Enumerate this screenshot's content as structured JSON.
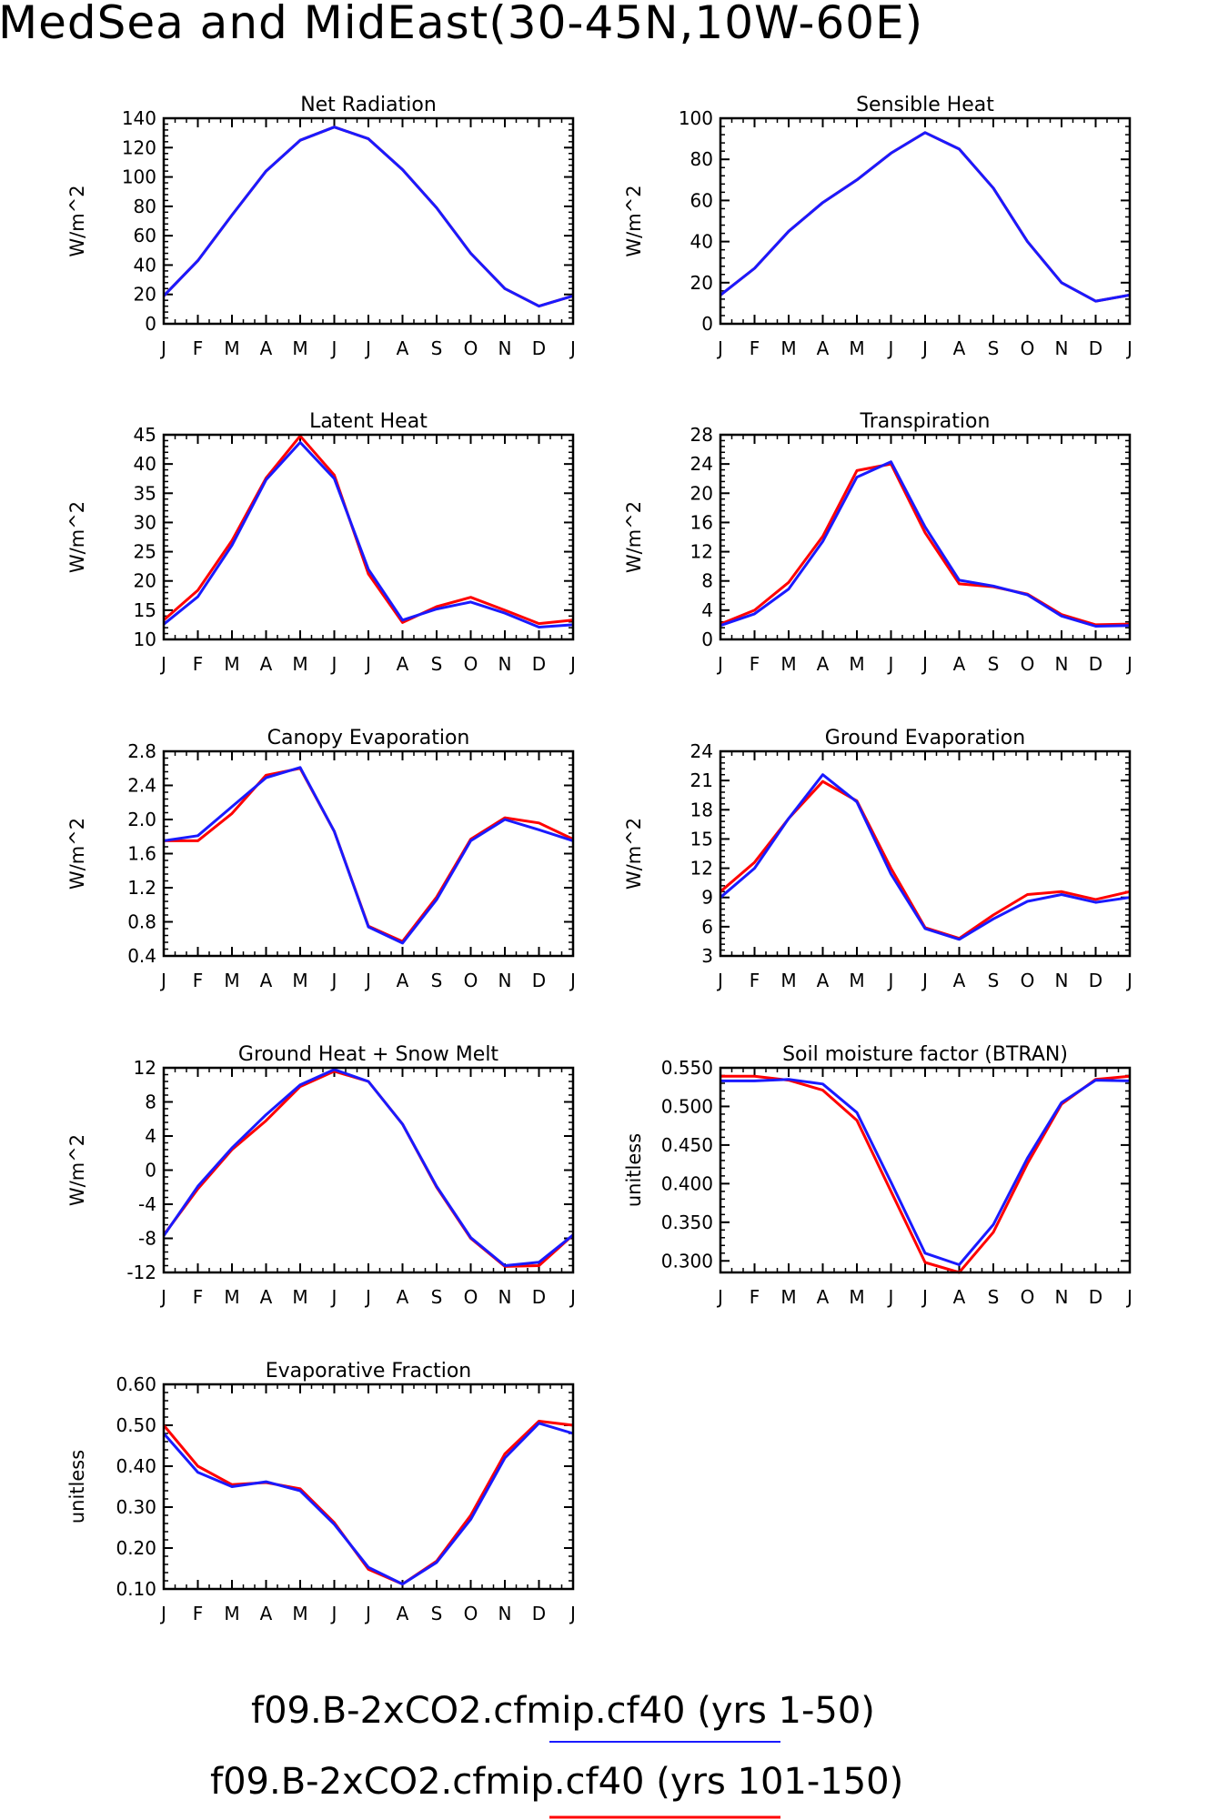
{
  "title": "MedSea and MidEast(30-45N,10W-60E)",
  "colors": {
    "series1": "#1a1aff",
    "series2": "#ff0000",
    "axis": "#000000"
  },
  "legend": [
    {
      "name": "f09.B-2xCO2.cfmip.cf40 (yrs 1-50)",
      "color": "#1a1aff"
    },
    {
      "name": "f09.B-2xCO2.cfmip.cf40 (yrs 101-150)",
      "color": "#ff0000"
    }
  ],
  "chart_data": [
    {
      "type": "line",
      "title": "Net Radiation",
      "ylabel": "W/m^2",
      "xlabel": "",
      "categories": [
        "J",
        "F",
        "M",
        "A",
        "M",
        "J",
        "J",
        "A",
        "S",
        "O",
        "N",
        "D",
        "J"
      ],
      "ylim": [
        0,
        140
      ],
      "yticks": [
        0,
        20,
        40,
        60,
        80,
        100,
        120,
        140
      ],
      "yfmt": 0,
      "series": [
        {
          "name": "f09.B-2xCO2.cfmip.cf40 (yrs 1-50)",
          "values": [
            19,
            43,
            74,
            104,
            125,
            134,
            126,
            105,
            79,
            48,
            24,
            12,
            19
          ]
        },
        {
          "name": "f09.B-2xCO2.cfmip.cf40 (yrs 101-150)",
          "values": [
            19,
            43,
            74,
            104,
            125,
            134,
            126,
            105,
            79,
            48,
            24,
            12,
            19
          ]
        }
      ]
    },
    {
      "type": "line",
      "title": "Sensible Heat",
      "ylabel": "W/m^2",
      "xlabel": "",
      "categories": [
        "J",
        "F",
        "M",
        "A",
        "M",
        "J",
        "J",
        "A",
        "S",
        "O",
        "N",
        "D",
        "J"
      ],
      "ylim": [
        0,
        100
      ],
      "yticks": [
        0,
        20,
        40,
        60,
        80,
        100
      ],
      "yfmt": 0,
      "series": [
        {
          "name": "f09.B-2xCO2.cfmip.cf40 (yrs 1-50)",
          "values": [
            14,
            27,
            45,
            59,
            70,
            83,
            93,
            85,
            66,
            40,
            20,
            11,
            14
          ]
        },
        {
          "name": "f09.B-2xCO2.cfmip.cf40 (yrs 101-150)",
          "values": [
            14,
            27,
            45,
            59,
            70,
            83,
            93,
            85,
            66,
            40,
            20,
            11,
            14
          ]
        }
      ]
    },
    {
      "type": "line",
      "title": "Latent Heat",
      "ylabel": "W/m^2",
      "xlabel": "",
      "categories": [
        "J",
        "F",
        "M",
        "A",
        "M",
        "J",
        "J",
        "A",
        "S",
        "O",
        "N",
        "D",
        "J"
      ],
      "ylim": [
        10,
        45
      ],
      "yticks": [
        10,
        15,
        20,
        25,
        30,
        35,
        40,
        45
      ],
      "yfmt": 0,
      "series": [
        {
          "name": "f09.B-2xCO2.cfmip.cf40 (yrs 1-50)",
          "values": [
            12.6,
            17.3,
            26.1,
            37.3,
            43.7,
            37.5,
            22.0,
            13.3,
            15.2,
            16.4,
            14.5,
            12.1,
            12.5
          ]
        },
        {
          "name": "f09.B-2xCO2.cfmip.cf40 (yrs 101-150)",
          "values": [
            13.3,
            18.4,
            26.9,
            37.6,
            44.8,
            38.1,
            21.2,
            12.9,
            15.6,
            17.2,
            15.0,
            12.7,
            13.3
          ]
        }
      ]
    },
    {
      "type": "line",
      "title": "Transpiration",
      "ylabel": "W/m^2",
      "xlabel": "",
      "categories": [
        "J",
        "F",
        "M",
        "A",
        "M",
        "J",
        "J",
        "A",
        "S",
        "O",
        "N",
        "D",
        "J"
      ],
      "ylim": [
        0,
        28
      ],
      "yticks": [
        0,
        4,
        8,
        12,
        16,
        20,
        24,
        28
      ],
      "yfmt": 0,
      "series": [
        {
          "name": "f09.B-2xCO2.cfmip.cf40 (yrs 1-50)",
          "values": [
            1.9,
            3.5,
            6.9,
            13.4,
            22.2,
            24.3,
            15.4,
            8.1,
            7.3,
            6.1,
            3.2,
            1.8,
            1.9
          ]
        },
        {
          "name": "f09.B-2xCO2.cfmip.cf40 (yrs 101-150)",
          "values": [
            2.1,
            4.0,
            7.8,
            14.1,
            23.1,
            24.0,
            14.6,
            7.6,
            7.2,
            6.2,
            3.4,
            2.0,
            2.1
          ]
        }
      ]
    },
    {
      "type": "line",
      "title": "Canopy Evaporation",
      "ylabel": "W/m^2",
      "xlabel": "",
      "categories": [
        "J",
        "F",
        "M",
        "A",
        "M",
        "J",
        "J",
        "A",
        "S",
        "O",
        "N",
        "D",
        "J"
      ],
      "ylim": [
        0.4,
        2.8
      ],
      "yticks": [
        0.4,
        0.8,
        1.2,
        1.6,
        2.0,
        2.4,
        2.8
      ],
      "yfmt": 1,
      "series": [
        {
          "name": "f09.B-2xCO2.cfmip.cf40 (yrs 1-50)",
          "values": [
            1.75,
            1.81,
            2.15,
            2.49,
            2.61,
            1.86,
            0.74,
            0.55,
            1.06,
            1.75,
            2.0,
            1.88,
            1.75
          ]
        },
        {
          "name": "f09.B-2xCO2.cfmip.cf40 (yrs 101-150)",
          "values": [
            1.75,
            1.75,
            2.07,
            2.52,
            2.6,
            1.86,
            0.75,
            0.57,
            1.09,
            1.77,
            2.02,
            1.96,
            1.77
          ]
        }
      ]
    },
    {
      "type": "line",
      "title": "Ground Evaporation",
      "ylabel": "W/m^2",
      "xlabel": "",
      "categories": [
        "J",
        "F",
        "M",
        "A",
        "M",
        "J",
        "J",
        "A",
        "S",
        "O",
        "N",
        "D",
        "J"
      ],
      "ylim": [
        3,
        24
      ],
      "yticks": [
        3,
        6,
        9,
        12,
        15,
        18,
        21,
        24
      ],
      "yfmt": 0,
      "series": [
        {
          "name": "f09.B-2xCO2.cfmip.cf40 (yrs 1-50)",
          "values": [
            9.0,
            12.0,
            17.1,
            21.6,
            18.8,
            11.4,
            5.8,
            4.7,
            6.8,
            8.6,
            9.3,
            8.5,
            9.0
          ]
        },
        {
          "name": "f09.B-2xCO2.cfmip.cf40 (yrs 101-150)",
          "values": [
            9.6,
            12.6,
            17.1,
            20.9,
            18.9,
            12.0,
            5.9,
            4.8,
            7.2,
            9.3,
            9.6,
            8.8,
            9.6
          ]
        }
      ]
    },
    {
      "type": "line",
      "title": "Ground Heat + Snow Melt",
      "ylabel": "W/m^2",
      "xlabel": "",
      "categories": [
        "J",
        "F",
        "M",
        "A",
        "M",
        "J",
        "J",
        "A",
        "S",
        "O",
        "N",
        "D",
        "J"
      ],
      "ylim": [
        -12,
        12
      ],
      "yticks": [
        -12,
        -8,
        -4,
        0,
        4,
        8,
        12
      ],
      "yfmt": 0,
      "series": [
        {
          "name": "f09.B-2xCO2.cfmip.cf40 (yrs 1-50)",
          "values": [
            -7.7,
            -1.9,
            2.6,
            6.5,
            10.0,
            11.8,
            10.4,
            5.4,
            -1.9,
            -7.9,
            -11.2,
            -10.8,
            -7.6
          ]
        },
        {
          "name": "f09.B-2xCO2.cfmip.cf40 (yrs 101-150)",
          "values": [
            -7.6,
            -2.2,
            2.4,
            5.8,
            9.8,
            11.6,
            10.4,
            5.4,
            -2.0,
            -8.0,
            -11.3,
            -11.2,
            -7.6
          ]
        }
      ]
    },
    {
      "type": "line",
      "title": "Soil moisture factor (BTRAN)",
      "ylabel": "unitless",
      "xlabel": "",
      "categories": [
        "J",
        "F",
        "M",
        "A",
        "M",
        "J",
        "J",
        "A",
        "S",
        "O",
        "N",
        "D",
        "J"
      ],
      "ylim": [
        0.285,
        0.55
      ],
      "yticks": [
        0.3,
        0.35,
        0.4,
        0.45,
        0.5,
        0.55
      ],
      "yfmt": 3,
      "series": [
        {
          "name": "f09.B-2xCO2.cfmip.cf40 (yrs 1-50)",
          "values": [
            0.533,
            0.533,
            0.535,
            0.529,
            0.492,
            0.402,
            0.31,
            0.295,
            0.347,
            0.433,
            0.505,
            0.534,
            0.533
          ]
        },
        {
          "name": "f09.B-2xCO2.cfmip.cf40 (yrs 101-150)",
          "values": [
            0.539,
            0.539,
            0.534,
            0.521,
            0.482,
            0.39,
            0.298,
            0.285,
            0.337,
            0.426,
            0.503,
            0.535,
            0.539
          ]
        }
      ]
    },
    {
      "type": "line",
      "title": "Evaporative Fraction",
      "ylabel": "unitless",
      "xlabel": "",
      "categories": [
        "J",
        "F",
        "M",
        "A",
        "M",
        "J",
        "J",
        "A",
        "S",
        "O",
        "N",
        "D",
        "J"
      ],
      "ylim": [
        0.1,
        0.6
      ],
      "yticks": [
        0.1,
        0.2,
        0.3,
        0.4,
        0.5,
        0.6
      ],
      "yfmt": 2,
      "series": [
        {
          "name": "f09.B-2xCO2.cfmip.cf40 (yrs 1-50)",
          "values": [
            0.48,
            0.385,
            0.35,
            0.362,
            0.34,
            0.258,
            0.153,
            0.112,
            0.165,
            0.27,
            0.42,
            0.505,
            0.48
          ]
        },
        {
          "name": "f09.B-2xCO2.cfmip.cf40 (yrs 101-150)",
          "values": [
            0.5,
            0.4,
            0.355,
            0.36,
            0.345,
            0.262,
            0.148,
            0.112,
            0.168,
            0.28,
            0.43,
            0.51,
            0.5
          ]
        }
      ]
    }
  ]
}
